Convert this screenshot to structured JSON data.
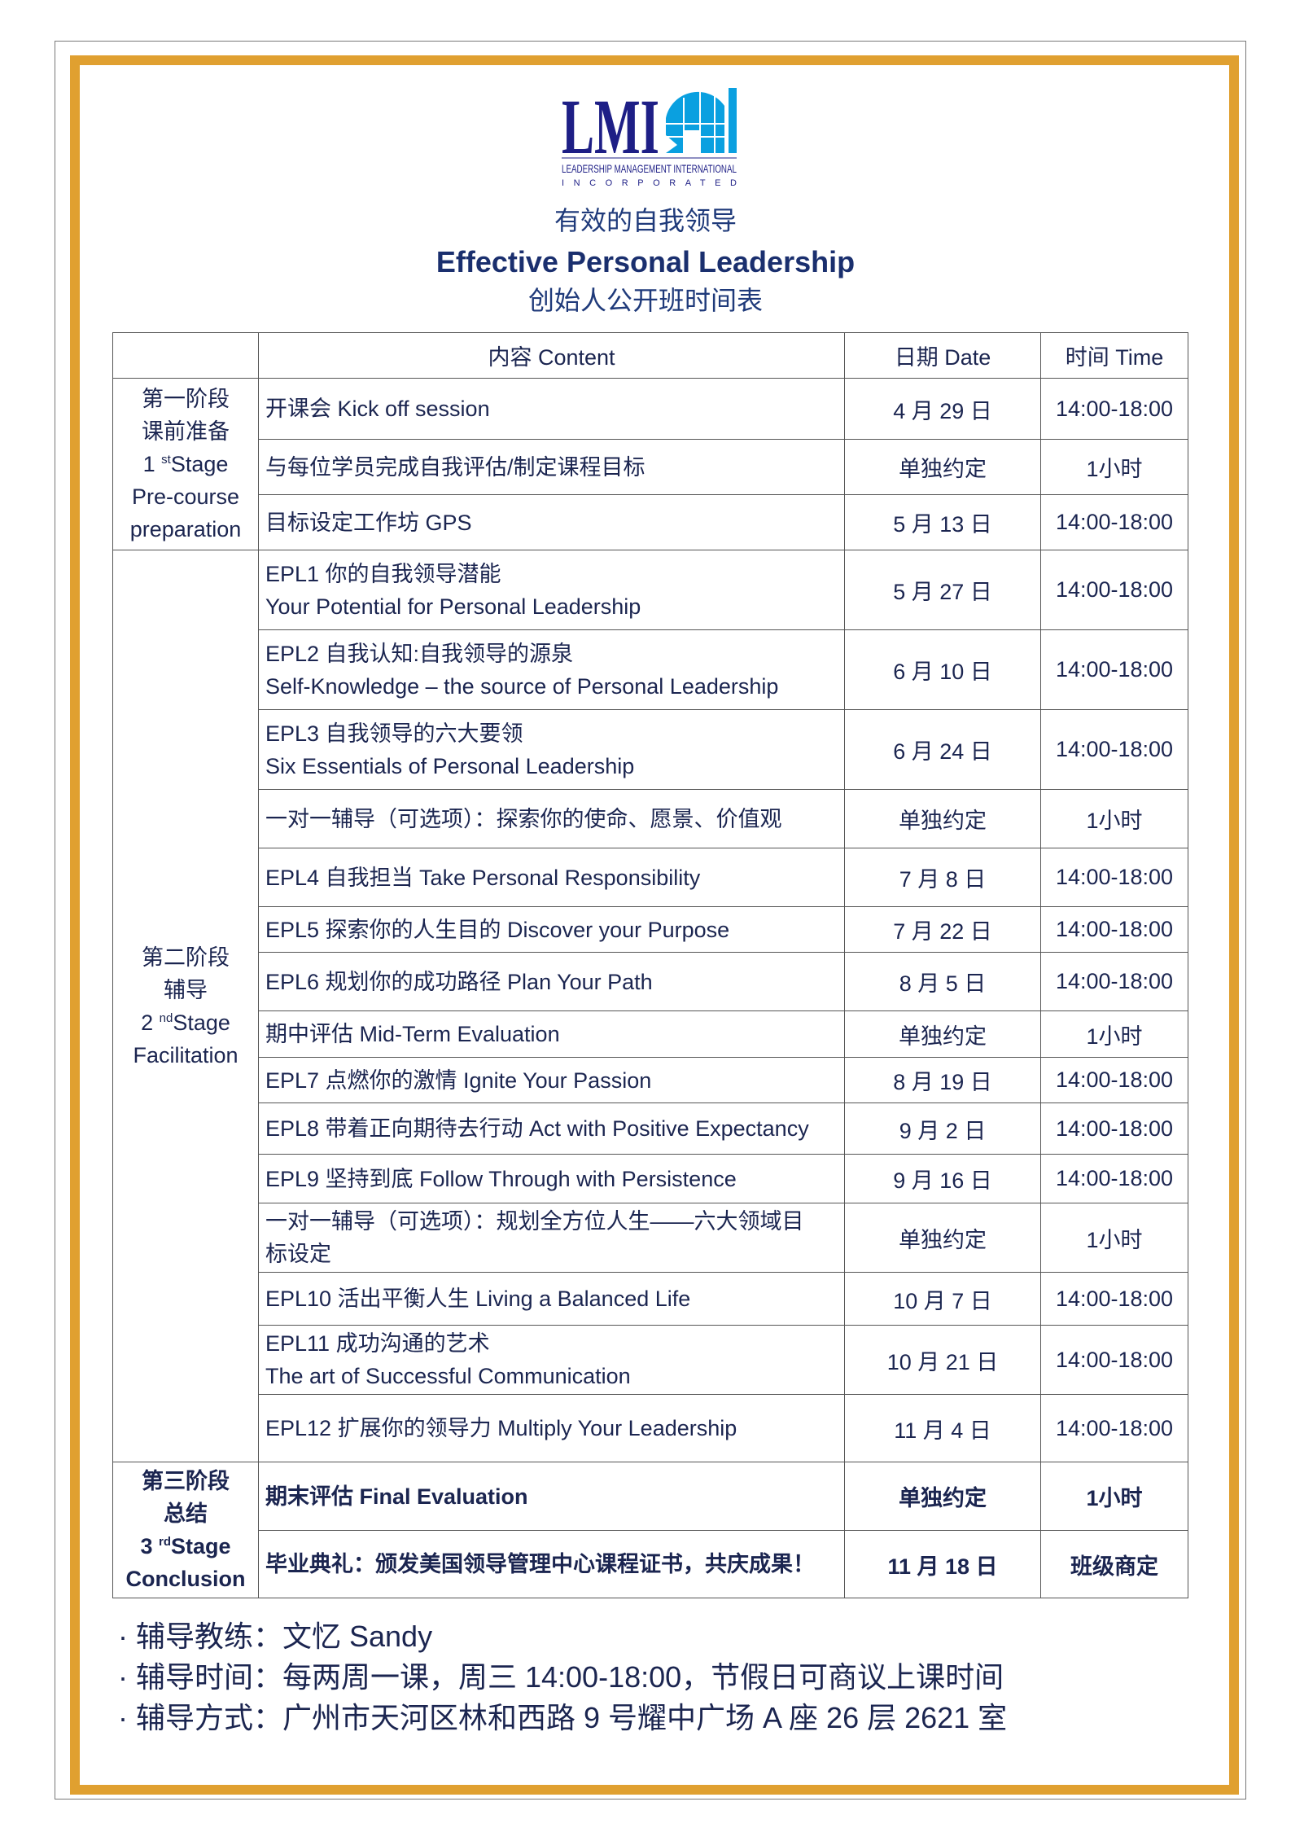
{
  "logo": {
    "text": "LMI",
    "line1": "LEADERSHIP MANAGEMENT INTERNATIONAL",
    "line2": "INCORPORATED",
    "colors": {
      "navy": "#1e1f86",
      "blue": "#0aa0e0"
    }
  },
  "title": {
    "cn": "有效的自我领导",
    "en": "Effective Personal Leadership",
    "sub": "创始人公开班时间表"
  },
  "border_color": "#e0a030",
  "table": {
    "headers": [
      "",
      "内容 Content",
      "日期 Date",
      "时间 Time"
    ],
    "stages": [
      {
        "cn1": "第一阶段",
        "cn2": "课前准备",
        "num": "1",
        "sup": "st",
        "word": "Stage",
        "en1": "Pre-course",
        "en2": "preparation"
      },
      {
        "cn1": "第二阶段",
        "cn2": "辅导",
        "num": "2",
        "sup": "nd",
        "word": "Stage",
        "en1": "Facilitation",
        "en2": ""
      },
      {
        "cn1": "第三阶段",
        "cn2": "总结",
        "num": "3",
        "sup": "rd",
        "word": "Stage",
        "en1": "Conclusion",
        "en2": ""
      }
    ],
    "rows": [
      {
        "l1": "开课会 Kick off session",
        "l2": "",
        "date": "4 月 29 日",
        "time": "14:00-18:00"
      },
      {
        "l1": "与每位学员完成自我评估/制定课程目标",
        "l2": "",
        "date": "单独约定",
        "time": "1小时"
      },
      {
        "l1": "目标设定工作坊 GPS",
        "l2": "",
        "date": "5 月 13 日",
        "time": "14:00-18:00"
      },
      {
        "l1": "EPL1 你的自我领导潜能",
        "l2": "Your Potential for Personal Leadership",
        "date": "5 月 27 日",
        "time": "14:00-18:00"
      },
      {
        "l1": "EPL2 自我认知:自我领导的源泉",
        "l2": "Self-Knowledge – the source of Personal Leadership",
        "date": "6 月 10 日",
        "time": "14:00-18:00"
      },
      {
        "l1": "EPL3 自我领导的六大要领",
        "l2": "Six Essentials of Personal Leadership",
        "date": "6 月 24 日",
        "time": "14:00-18:00"
      },
      {
        "l1": "一对一辅导（可选项）：探索你的使命、愿景、价值观",
        "l2": "",
        "date": "单独约定",
        "time": "1小时"
      },
      {
        "l1": "EPL4 自我担当 Take Personal Responsibility",
        "l2": "",
        "date": "7 月 8 日",
        "time": "14:00-18:00"
      },
      {
        "l1": "EPL5 探索你的人生目的 Discover your Purpose",
        "l2": "",
        "date": "7 月 22 日",
        "time": "14:00-18:00"
      },
      {
        "l1": "EPL6 规划你的成功路径 Plan Your Path",
        "l2": "",
        "date": "8 月 5 日",
        "time": "14:00-18:00"
      },
      {
        "l1": "期中评估 Mid-Term Evaluation",
        "l2": "",
        "date": "单独约定",
        "time": "1小时"
      },
      {
        "l1": "EPL7 点燃你的激情 Ignite Your Passion",
        "l2": "",
        "date": "8 月 19 日",
        "time": "14:00-18:00"
      },
      {
        "l1": "EPL8 带着正向期待去行动 Act with Positive Expectancy",
        "l2": "",
        "date": "9 月 2 日",
        "time": "14:00-18:00"
      },
      {
        "l1": "EPL9 坚持到底 Follow Through with Persistence",
        "l2": "",
        "date": "9 月 16 日",
        "time": "14:00-18:00"
      },
      {
        "l1": "一对一辅导（可选项）：规划全方位人生——六大领域目",
        "l2": "标设定",
        "date": "单独约定",
        "time": "1小时"
      },
      {
        "l1": "EPL10 活出平衡人生 Living a Balanced Life",
        "l2": "",
        "date": "10 月 7 日",
        "time": "14:00-18:00"
      },
      {
        "l1": "EPL11 成功沟通的艺术",
        "l2": "The art of Successful Communication",
        "date": "10 月 21 日",
        "time": "14:00-18:00"
      },
      {
        "l1": "EPL12 扩展你的领导力 Multiply Your Leadership",
        "l2": "",
        "date": "11 月 4 日",
        "time": "14:00-18:00"
      },
      {
        "l1": "期末评估 Final Evaluation",
        "l2": "",
        "date": "单独约定",
        "time": "1小时"
      },
      {
        "l1": "毕业典礼：颁发美国领导管理中心课程证书，共庆成果！",
        "l2": "",
        "date": "11 月 18 日",
        "time": "班级商定"
      }
    ]
  },
  "footer": [
    "· 辅导教练：文忆 Sandy",
    "· 辅导时间：每两周一课，周三 14:00-18:00，节假日可商议上课时间",
    "· 辅导方式：广州市天河区林和西路 9 号耀中广场 A 座 26 层 2621 室"
  ]
}
